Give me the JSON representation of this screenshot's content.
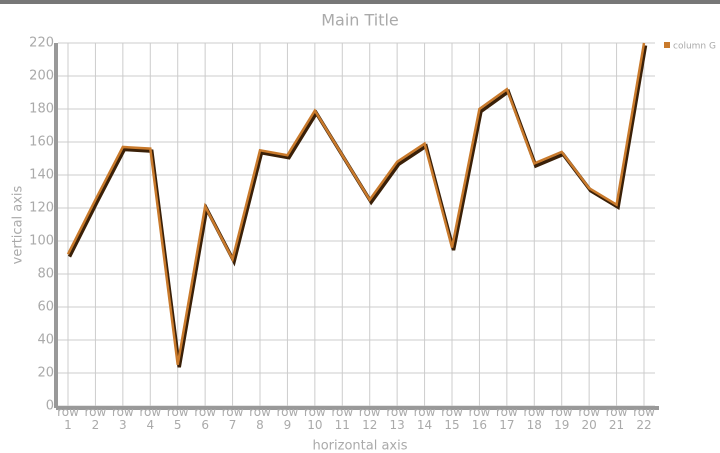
{
  "chart_data": {
    "type": "line",
    "title": "Main Title",
    "x_label": "horizontal axis",
    "y_label": "vertical axis",
    "categories": [
      "row 1",
      "row 2",
      "row 3",
      "row 4",
      "row 5",
      "row 6",
      "row 7",
      "row 8",
      "row 9",
      "row 10",
      "row 11",
      "row 12",
      "row 13",
      "row 14",
      "row 15",
      "row 16",
      "row 17",
      "row 18",
      "row 19",
      "row 20",
      "row 21",
      "row 22"
    ],
    "series": [
      {
        "name": "column G",
        "color": "#c97a2c",
        "values": [
          92,
          125,
          157,
          156,
          25,
          121,
          89,
          155,
          152,
          179,
          152,
          125,
          148,
          159,
          96,
          180,
          192,
          147,
          154,
          132,
          122,
          220
        ]
      }
    ],
    "ylim": [
      0,
      220
    ],
    "yticks": [
      0,
      20,
      40,
      60,
      80,
      100,
      120,
      140,
      160,
      180,
      200,
      220
    ],
    "grid": true,
    "legend": "top-right"
  }
}
